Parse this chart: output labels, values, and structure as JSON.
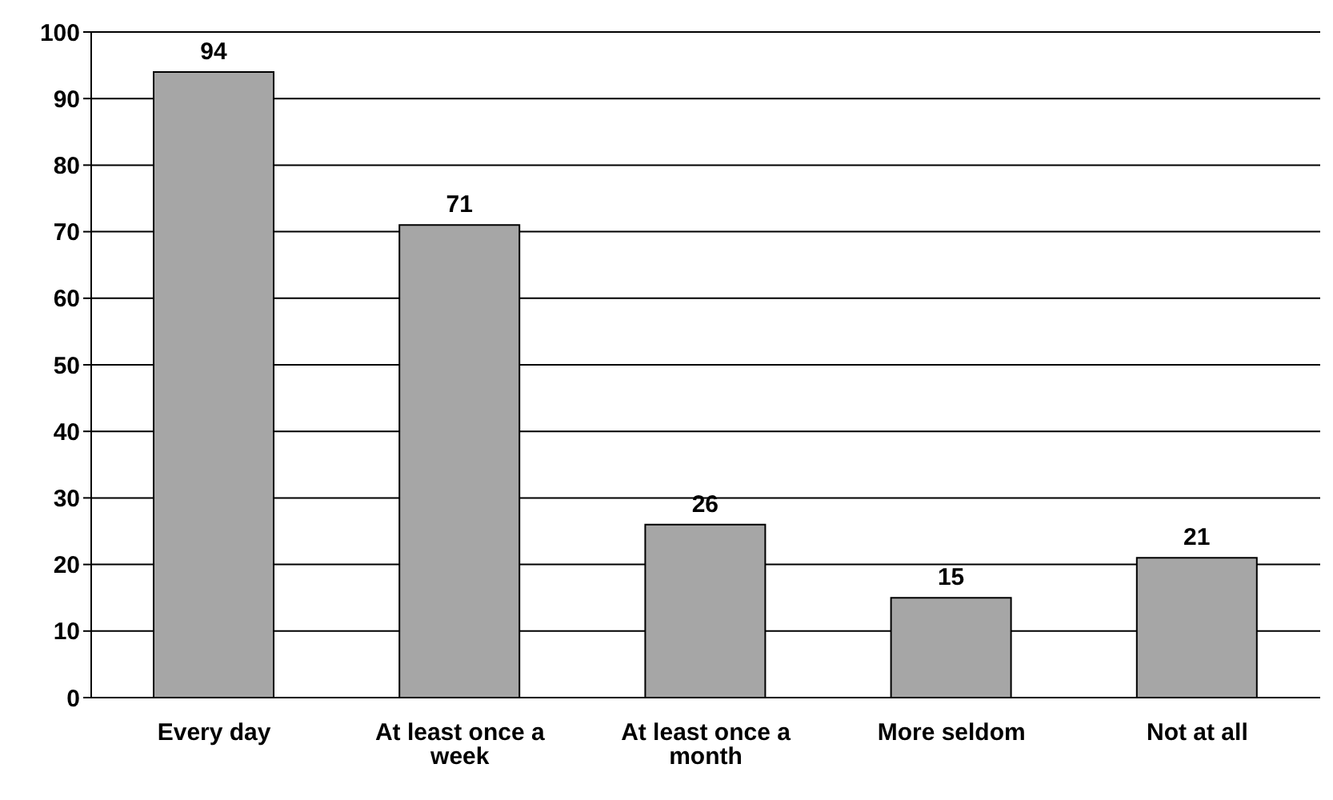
{
  "chart_data": {
    "type": "bar",
    "categories": [
      "Every day",
      "At least once a week",
      "At least once a month",
      "More seldom",
      "Not at all"
    ],
    "values": [
      94,
      71,
      26,
      15,
      21
    ],
    "color": "#a6a6a6",
    "ylim": [
      0,
      100
    ],
    "yticks": [
      0,
      10,
      20,
      30,
      40,
      50,
      60,
      70,
      80,
      90,
      100
    ],
    "grid": "y",
    "data_labels": true,
    "legend": false
  }
}
